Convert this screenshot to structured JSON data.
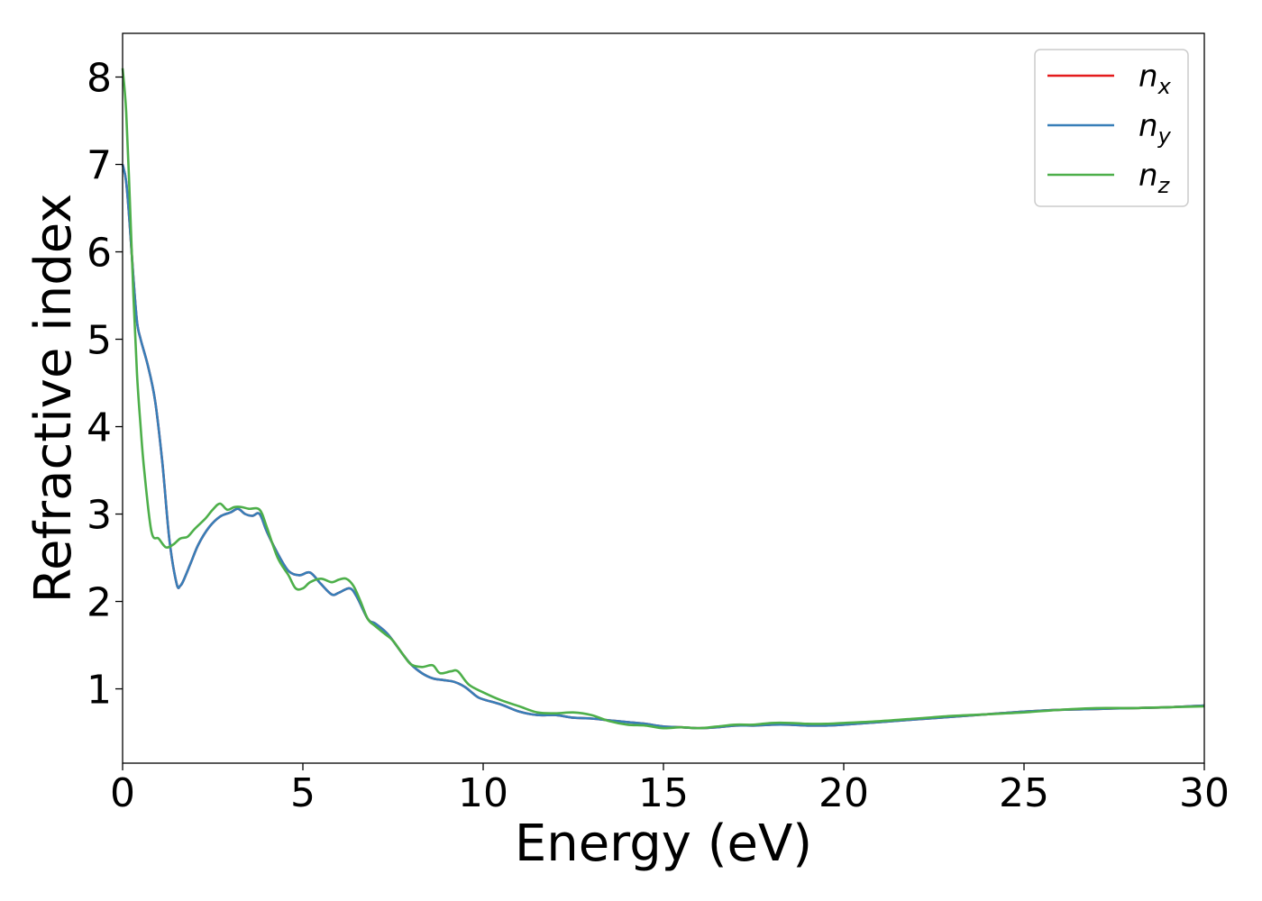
{
  "chart_data": {
    "type": "line",
    "xlabel": "Energy (eV)",
    "ylabel": "Refractive index",
    "xlim": [
      0,
      30
    ],
    "ylim": [
      0.15,
      8.5
    ],
    "xticks": [
      0,
      5,
      10,
      15,
      20,
      25,
      30
    ],
    "yticks": [
      1,
      2,
      3,
      4,
      5,
      6,
      7,
      8
    ],
    "grid": false,
    "legend_position": "top-right",
    "series": [
      {
        "name": "n",
        "sub": "x",
        "color": "#e41a1c",
        "x": [
          0,
          0.1,
          0.2,
          0.3,
          0.4,
          0.5,
          0.7,
          0.9,
          1.1,
          1.3,
          1.5,
          1.6,
          1.7,
          1.9,
          2.1,
          2.4,
          2.7,
          3.0,
          3.2,
          3.4,
          3.6,
          3.8,
          4.0,
          4.3,
          4.6,
          4.9,
          5.2,
          5.5,
          5.8,
          6.0,
          6.3,
          6.5,
          6.8,
          7.0,
          7.3,
          7.5,
          7.8,
          8.0,
          8.3,
          8.6,
          8.9,
          9.2,
          9.5,
          9.8,
          10.0,
          10.5,
          11.0,
          11.5,
          12.0,
          12.5,
          13.0,
          13.5,
          14.0,
          14.5,
          15.0,
          15.5,
          16.0,
          16.5,
          17.0,
          17.5,
          18.0,
          18.5,
          19.0,
          19.5,
          20.0,
          21.0,
          22.0,
          23.0,
          24.0,
          25.0,
          26.0,
          27.0,
          28.0,
          29.0,
          30.0
        ],
        "y": [
          7.0,
          6.8,
          6.3,
          5.7,
          5.2,
          5.0,
          4.7,
          4.3,
          3.6,
          2.7,
          2.2,
          2.18,
          2.25,
          2.45,
          2.65,
          2.85,
          2.97,
          3.02,
          3.06,
          3.0,
          2.98,
          3.0,
          2.8,
          2.55,
          2.35,
          2.3,
          2.33,
          2.2,
          2.08,
          2.1,
          2.15,
          2.05,
          1.8,
          1.75,
          1.65,
          1.55,
          1.38,
          1.28,
          1.18,
          1.12,
          1.1,
          1.08,
          1.02,
          0.92,
          0.88,
          0.82,
          0.74,
          0.7,
          0.7,
          0.67,
          0.66,
          0.64,
          0.62,
          0.6,
          0.57,
          0.56,
          0.55,
          0.56,
          0.58,
          0.58,
          0.59,
          0.59,
          0.58,
          0.58,
          0.59,
          0.62,
          0.65,
          0.68,
          0.71,
          0.74,
          0.76,
          0.77,
          0.78,
          0.79,
          0.81
        ]
      },
      {
        "name": "n",
        "sub": "y",
        "color": "#377eb8",
        "x": [
          0,
          0.1,
          0.2,
          0.3,
          0.4,
          0.5,
          0.7,
          0.9,
          1.1,
          1.3,
          1.5,
          1.6,
          1.7,
          1.9,
          2.1,
          2.4,
          2.7,
          3.0,
          3.2,
          3.4,
          3.6,
          3.8,
          4.0,
          4.3,
          4.6,
          4.9,
          5.2,
          5.5,
          5.8,
          6.0,
          6.3,
          6.5,
          6.8,
          7.0,
          7.3,
          7.5,
          7.8,
          8.0,
          8.3,
          8.6,
          8.9,
          9.2,
          9.5,
          9.8,
          10.0,
          10.5,
          11.0,
          11.5,
          12.0,
          12.5,
          13.0,
          13.5,
          14.0,
          14.5,
          15.0,
          15.5,
          16.0,
          16.5,
          17.0,
          17.5,
          18.0,
          18.5,
          19.0,
          19.5,
          20.0,
          21.0,
          22.0,
          23.0,
          24.0,
          25.0,
          26.0,
          27.0,
          28.0,
          29.0,
          30.0
        ],
        "y": [
          7.0,
          6.8,
          6.3,
          5.7,
          5.2,
          5.0,
          4.7,
          4.3,
          3.6,
          2.7,
          2.2,
          2.18,
          2.25,
          2.45,
          2.65,
          2.85,
          2.97,
          3.02,
          3.06,
          3.0,
          2.98,
          3.0,
          2.8,
          2.55,
          2.35,
          2.3,
          2.33,
          2.2,
          2.08,
          2.1,
          2.15,
          2.05,
          1.8,
          1.75,
          1.65,
          1.55,
          1.38,
          1.28,
          1.18,
          1.12,
          1.1,
          1.08,
          1.02,
          0.92,
          0.88,
          0.82,
          0.74,
          0.7,
          0.7,
          0.67,
          0.66,
          0.64,
          0.62,
          0.6,
          0.57,
          0.56,
          0.55,
          0.56,
          0.58,
          0.58,
          0.59,
          0.59,
          0.58,
          0.58,
          0.59,
          0.62,
          0.65,
          0.68,
          0.71,
          0.74,
          0.76,
          0.77,
          0.78,
          0.79,
          0.81
        ]
      },
      {
        "name": "n",
        "sub": "z",
        "color": "#4daf4a",
        "x": [
          0,
          0.1,
          0.2,
          0.3,
          0.4,
          0.5,
          0.6,
          0.8,
          1.0,
          1.2,
          1.4,
          1.6,
          1.8,
          2.0,
          2.3,
          2.5,
          2.7,
          2.9,
          3.1,
          3.3,
          3.5,
          3.8,
          4.0,
          4.3,
          4.6,
          4.8,
          5.0,
          5.2,
          5.5,
          5.8,
          6.0,
          6.2,
          6.4,
          6.6,
          6.8,
          7.0,
          7.3,
          7.5,
          7.8,
          8.0,
          8.3,
          8.6,
          8.8,
          9.1,
          9.3,
          9.6,
          10.0,
          10.5,
          11.0,
          11.5,
          12.0,
          12.5,
          13.0,
          13.5,
          14.0,
          14.5,
          15.0,
          15.5,
          16.0,
          16.5,
          17.0,
          17.5,
          18.0,
          18.5,
          19.0,
          19.5,
          20.0,
          21.0,
          22.0,
          23.0,
          24.0,
          25.0,
          26.0,
          27.0,
          28.0,
          29.0,
          30.0
        ],
        "y": [
          8.1,
          7.6,
          6.6,
          5.5,
          4.6,
          4.0,
          3.5,
          2.8,
          2.72,
          2.62,
          2.65,
          2.72,
          2.74,
          2.83,
          2.95,
          3.05,
          3.12,
          3.05,
          3.08,
          3.08,
          3.06,
          3.05,
          2.85,
          2.5,
          2.3,
          2.15,
          2.15,
          2.22,
          2.26,
          2.22,
          2.25,
          2.26,
          2.18,
          2.0,
          1.8,
          1.72,
          1.62,
          1.55,
          1.38,
          1.28,
          1.25,
          1.27,
          1.18,
          1.2,
          1.2,
          1.05,
          0.96,
          0.87,
          0.8,
          0.73,
          0.72,
          0.73,
          0.7,
          0.63,
          0.59,
          0.58,
          0.55,
          0.56,
          0.55,
          0.57,
          0.59,
          0.59,
          0.61,
          0.61,
          0.6,
          0.6,
          0.61,
          0.63,
          0.66,
          0.69,
          0.71,
          0.73,
          0.76,
          0.78,
          0.78,
          0.79,
          0.8
        ]
      }
    ]
  }
}
